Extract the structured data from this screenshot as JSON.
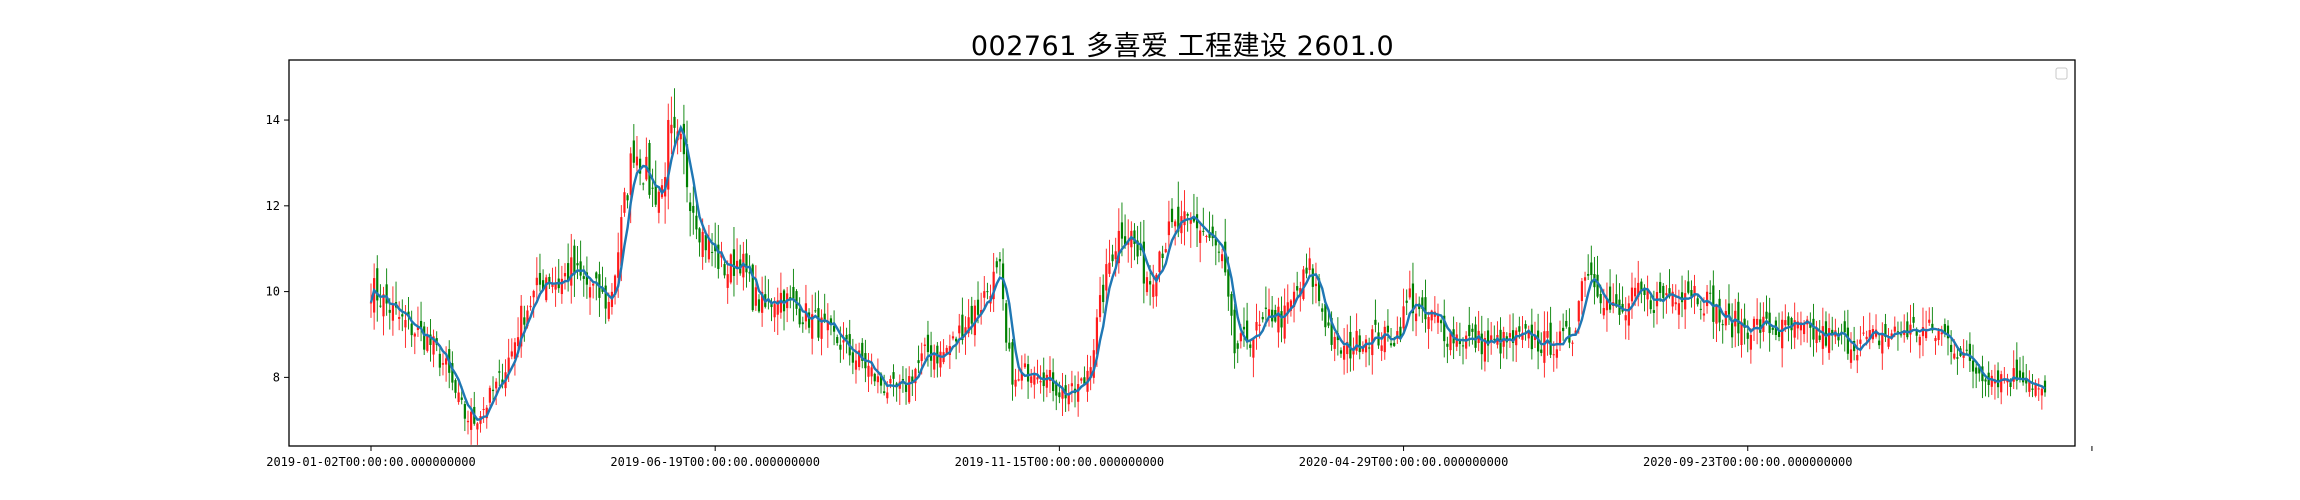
{
  "chart_data": {
    "type": "candlestick",
    "title": "002761 多喜爱 工程建设 2601.0",
    "xlabel": "",
    "ylabel": "",
    "ylim": [
      6.4,
      15.4
    ],
    "y_ticks": [
      8,
      10,
      12,
      14
    ],
    "x_ticks": [
      "2019-01-02T00:00:00.000000000",
      "2019-06-19T00:00:00.000000000",
      "2019-11-15T00:00:00.000000000",
      "2020-04-29T00:00:00.000000000",
      "2020-09-23T00:00:00.000000000"
    ],
    "x_tick_bar_index": [
      0,
      110,
      220,
      330,
      440
    ],
    "grid": false,
    "legend": "top-right",
    "up_color": "#ff1a1a",
    "down_color": "#008000",
    "ma_color": "#1f77b4",
    "close_anchors": [
      [
        0,
        10.1
      ],
      [
        5,
        9.7
      ],
      [
        10,
        9.3
      ],
      [
        16,
        9.0
      ],
      [
        20,
        8.7
      ],
      [
        24,
        8.2
      ],
      [
        27,
        7.6
      ],
      [
        30,
        7.1
      ],
      [
        33,
        7.0
      ],
      [
        37,
        7.4
      ],
      [
        41,
        7.9
      ],
      [
        45,
        8.6
      ],
      [
        48,
        9.4
      ],
      [
        52,
        9.9
      ],
      [
        56,
        10.4
      ],
      [
        60,
        10.2
      ],
      [
        64,
        10.5
      ],
      [
        68,
        10.2
      ],
      [
        72,
        10.0
      ],
      [
        76,
        9.7
      ],
      [
        78,
        10.5
      ],
      [
        81,
        12.0
      ],
      [
        84,
        13.4
      ],
      [
        87,
        12.9
      ],
      [
        90,
        12.3
      ],
      [
        93,
        12.4
      ],
      [
        95,
        13.6
      ],
      [
        99,
        13.3
      ],
      [
        102,
        12.3
      ],
      [
        106,
        11.3
      ],
      [
        110,
        10.8
      ],
      [
        114,
        10.5
      ],
      [
        118,
        10.8
      ],
      [
        122,
        9.9
      ],
      [
        126,
        9.6
      ],
      [
        130,
        10.0
      ],
      [
        134,
        9.7
      ],
      [
        138,
        9.5
      ],
      [
        142,
        9.3
      ],
      [
        146,
        9.0
      ],
      [
        150,
        8.8
      ],
      [
        154,
        8.5
      ],
      [
        158,
        8.3
      ],
      [
        162,
        7.9
      ],
      [
        166,
        7.7
      ],
      [
        170,
        7.7
      ],
      [
        174,
        8.2
      ],
      [
        178,
        8.6
      ],
      [
        182,
        8.5
      ],
      [
        186,
        8.8
      ],
      [
        190,
        9.3
      ],
      [
        194,
        9.6
      ],
      [
        198,
        10.2
      ],
      [
        201,
        10.4
      ],
      [
        203,
        8.7
      ],
      [
        206,
        7.8
      ],
      [
        209,
        8.1
      ],
      [
        212,
        8.3
      ],
      [
        216,
        8.0
      ],
      [
        220,
        7.7
      ],
      [
        224,
        7.6
      ],
      [
        228,
        7.9
      ],
      [
        231,
        8.8
      ],
      [
        234,
        10.0
      ],
      [
        237,
        11.0
      ],
      [
        240,
        11.5
      ],
      [
        243,
        11.3
      ],
      [
        246,
        10.6
      ],
      [
        249,
        10.3
      ],
      [
        252,
        11.0
      ],
      [
        256,
        11.4
      ],
      [
        260,
        11.5
      ],
      [
        264,
        11.6
      ],
      [
        268,
        11.2
      ],
      [
        272,
        10.7
      ],
      [
        276,
        8.6
      ],
      [
        280,
        8.9
      ],
      [
        284,
        9.1
      ],
      [
        288,
        9.5
      ],
      [
        292,
        9.4
      ],
      [
        296,
        10.0
      ],
      [
        300,
        10.5
      ],
      [
        304,
        9.6
      ],
      [
        308,
        8.7
      ],
      [
        312,
        8.6
      ],
      [
        316,
        8.9
      ],
      [
        320,
        9.0
      ],
      [
        324,
        8.9
      ],
      [
        328,
        9.0
      ],
      [
        332,
        9.9
      ],
      [
        336,
        9.3
      ],
      [
        340,
        9.4
      ],
      [
        344,
        9.0
      ],
      [
        350,
        8.9
      ],
      [
        356,
        8.8
      ],
      [
        362,
        8.8
      ],
      [
        368,
        8.9
      ],
      [
        374,
        8.8
      ],
      [
        380,
        8.8
      ],
      [
        384,
        9.0
      ],
      [
        388,
        10.6
      ],
      [
        392,
        10.2
      ],
      [
        396,
        9.6
      ],
      [
        400,
        9.4
      ],
      [
        404,
        9.9
      ],
      [
        410,
        9.8
      ],
      [
        416,
        10.0
      ],
      [
        422,
        10.1
      ],
      [
        428,
        9.7
      ],
      [
        432,
        9.3
      ],
      [
        438,
        9.2
      ],
      [
        444,
        9.2
      ],
      [
        450,
        9.1
      ],
      [
        456,
        9.1
      ],
      [
        462,
        9.0
      ],
      [
        468,
        8.9
      ],
      [
        474,
        8.8
      ],
      [
        480,
        8.9
      ],
      [
        486,
        9.0
      ],
      [
        490,
        9.1
      ],
      [
        496,
        9.1
      ],
      [
        502,
        9.0
      ],
      [
        508,
        8.6
      ],
      [
        512,
        8.2
      ],
      [
        516,
        8.1
      ],
      [
        520,
        8.0
      ],
      [
        524,
        8.0
      ],
      [
        528,
        8.1
      ],
      [
        532,
        7.8
      ],
      [
        535,
        7.5
      ]
    ]
  }
}
